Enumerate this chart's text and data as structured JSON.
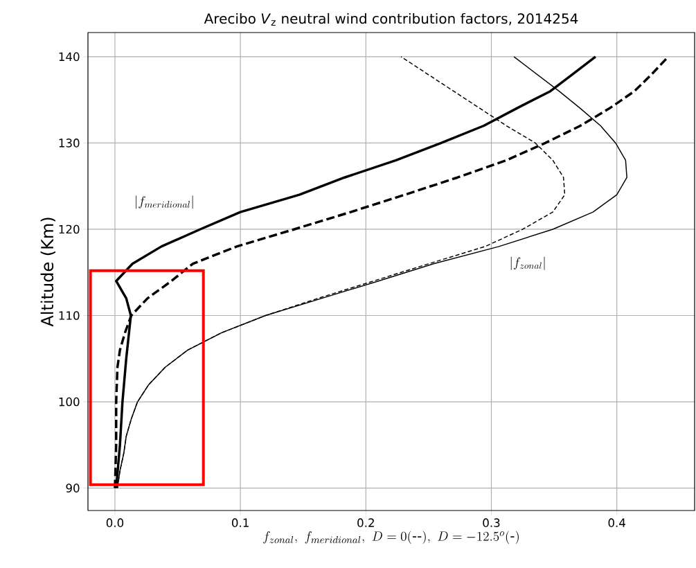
{
  "chart_data": {
    "type": "line",
    "title": "Arecibo *V*$_{z}$ neutral wind contribution factors, 2014254",
    "xlabel": "f_{zonal},\\ f_{meridional},\\ D=0(\\mbox{-{}-}),\\ D=-12.5^{o}(\\mbox{-})",
    "ylabel": "Altitude (Km)",
    "xlim": [
      -0.0215,
      0.462
    ],
    "ylim": [
      87.4,
      142.8
    ],
    "xticks": [
      {
        "value": 0,
        "label": "0.0"
      },
      0.1,
      0.2,
      0.3,
      0.4
    ],
    "yticks": [
      90,
      100,
      110,
      120,
      130,
      140
    ],
    "grid": true,
    "marker": "none",
    "annotations": [
      "|f_{meridional}|",
      "|f_{zonal}|"
    ],
    "series": [
      {
        "color": "#000000",
        "line_style": "solid",
        "x": [
          0.001,
          0.004,
          0.006,
          0.009,
          0.0127,
          0.009,
          0.001,
          0.014,
          0.037,
          0.068,
          0.1,
          0.147,
          0.183,
          0.224,
          0.26,
          0.294,
          0.32,
          0.347,
          0.365,
          0.383
        ],
        "values": [
          90,
          95,
          100,
          105,
          110,
          112,
          114,
          116,
          118,
          120,
          122,
          124,
          126,
          128,
          130,
          132,
          134,
          136,
          138,
          140
        ]
      },
      {
        "color": "#000000",
        "line_style": "dashed",
        "x": [
          0.0,
          0.001,
          0.001,
          0.002,
          0.004,
          0.008,
          0.013,
          0.026,
          0.045,
          0.062,
          0.097,
          0.143,
          0.188,
          0.231,
          0.273,
          0.312,
          0.343,
          0.371,
          0.394,
          0.414,
          0.428,
          0.441
        ],
        "values": [
          90,
          95,
          100,
          104,
          106,
          108,
          110,
          112,
          114,
          116,
          118,
          120,
          122,
          124,
          126,
          128,
          130,
          132,
          134,
          136,
          138,
          140
        ]
      },
      {
        "color": "#000000",
        "line_style": "solid",
        "x": [
          0.002,
          0.004,
          0.007,
          0.009,
          0.013,
          0.018,
          0.027,
          0.04,
          0.058,
          0.085,
          0.12,
          0.165,
          0.21,
          0.254,
          0.306,
          0.349,
          0.381,
          0.4,
          0.408,
          0.407,
          0.399,
          0.387,
          0.371,
          0.354,
          0.336,
          0.318
        ],
        "values": [
          90,
          92,
          94,
          96,
          98,
          100,
          102,
          104,
          106,
          108,
          110,
          112,
          114,
          116,
          118,
          120,
          122,
          124,
          126,
          128,
          130,
          132,
          134,
          136,
          138,
          140
        ]
      },
      {
        "color": "#000000",
        "line_style": "dashed",
        "x": [
          0.002,
          0.004,
          0.007,
          0.009,
          0.013,
          0.018,
          0.027,
          0.04,
          0.058,
          0.085,
          0.12,
          0.162,
          0.206,
          0.25,
          0.295,
          0.325,
          0.349,
          0.3585,
          0.3575,
          0.349,
          0.335,
          0.312,
          0.291,
          0.27,
          0.249,
          0.228
        ],
        "values": [
          90,
          92,
          94,
          96,
          98,
          100,
          102,
          104,
          106,
          108,
          110,
          112,
          114,
          116,
          118,
          120,
          122,
          124,
          126,
          128,
          130,
          132,
          134,
          136,
          138,
          140
        ]
      }
    ]
  }
}
